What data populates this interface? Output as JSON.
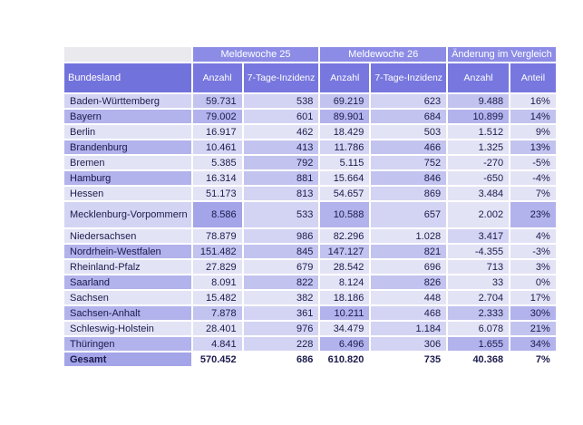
{
  "header": {
    "groups": [
      "Meldewoche 25",
      "Meldewoche 26",
      "Änderung im Vergleich"
    ],
    "row_header": "Bundesland",
    "sub": [
      "Anzahl",
      "7-Tage-Inzidenz",
      "Anzahl",
      "7-Tage-Inzidenz",
      "Anzahl",
      "Anteil"
    ]
  },
  "rows": [
    {
      "land": "Baden-Württemberg",
      "a25": "59.731",
      "i25": "538",
      "a26": "69.219",
      "i26": "623",
      "d": "9.488",
      "p": "16%"
    },
    {
      "land": "Bayern",
      "a25": "79.002",
      "i25": "601",
      "a26": "89.901",
      "i26": "684",
      "d": "10.899",
      "p": "14%"
    },
    {
      "land": "Berlin",
      "a25": "16.917",
      "i25": "462",
      "a26": "18.429",
      "i26": "503",
      "d": "1.512",
      "p": "9%"
    },
    {
      "land": "Brandenburg",
      "a25": "10.461",
      "i25": "413",
      "a26": "11.786",
      "i26": "466",
      "d": "1.325",
      "p": "13%"
    },
    {
      "land": "Bremen",
      "a25": "5.385",
      "i25": "792",
      "a26": "5.115",
      "i26": "752",
      "d": "-270",
      "p": "-5%"
    },
    {
      "land": "Hamburg",
      "a25": "16.314",
      "i25": "881",
      "a26": "15.664",
      "i26": "846",
      "d": "-650",
      "p": "-4%"
    },
    {
      "land": "Hessen",
      "a25": "51.173",
      "i25": "813",
      "a26": "54.657",
      "i26": "869",
      "d": "3.484",
      "p": "7%"
    },
    {
      "land": "Mecklenburg-Vorpommern",
      "a25": "8.586",
      "i25": "533",
      "a26": "10.588",
      "i26": "657",
      "d": "2.002",
      "p": "23%"
    },
    {
      "land": "Niedersachsen",
      "a25": "78.879",
      "i25": "986",
      "a26": "82.296",
      "i26": "1.028",
      "d": "3.417",
      "p": "4%"
    },
    {
      "land": "Nordrhein-Westfalen",
      "a25": "151.482",
      "i25": "845",
      "a26": "147.127",
      "i26": "821",
      "d": "-4.355",
      "p": "-3%"
    },
    {
      "land": "Rheinland-Pfalz",
      "a25": "27.829",
      "i25": "679",
      "a26": "28.542",
      "i26": "696",
      "d": "713",
      "p": "3%"
    },
    {
      "land": "Saarland",
      "a25": "8.091",
      "i25": "822",
      "a26": "8.124",
      "i26": "826",
      "d": "33",
      "p": "0%"
    },
    {
      "land": "Sachsen",
      "a25": "15.482",
      "i25": "382",
      "a26": "18.186",
      "i26": "448",
      "d": "2.704",
      "p": "17%"
    },
    {
      "land": "Sachsen-Anhalt",
      "a25": "7.878",
      "i25": "361",
      "a26": "10.211",
      "i26": "468",
      "d": "2.333",
      "p": "30%"
    },
    {
      "land": "Schleswig-Holstein",
      "a25": "28.401",
      "i25": "976",
      "a26": "34.479",
      "i26": "1.184",
      "d": "6.078",
      "p": "21%"
    },
    {
      "land": "Thüringen",
      "a25": "4.841",
      "i25": "228",
      "a26": "6.496",
      "i26": "306",
      "d": "1.655",
      "p": "34%"
    }
  ],
  "total": {
    "land": "Gesamt",
    "a25": "570.452",
    "i25": "686",
    "a26": "610.820",
    "i26": "735",
    "d": "40.368",
    "p": "7%"
  },
  "colors": {
    "header": "#7777df",
    "group_header": "#8c8ce6",
    "heat_low": "#e3e3f6",
    "heat_high": "#a4a4e9"
  }
}
